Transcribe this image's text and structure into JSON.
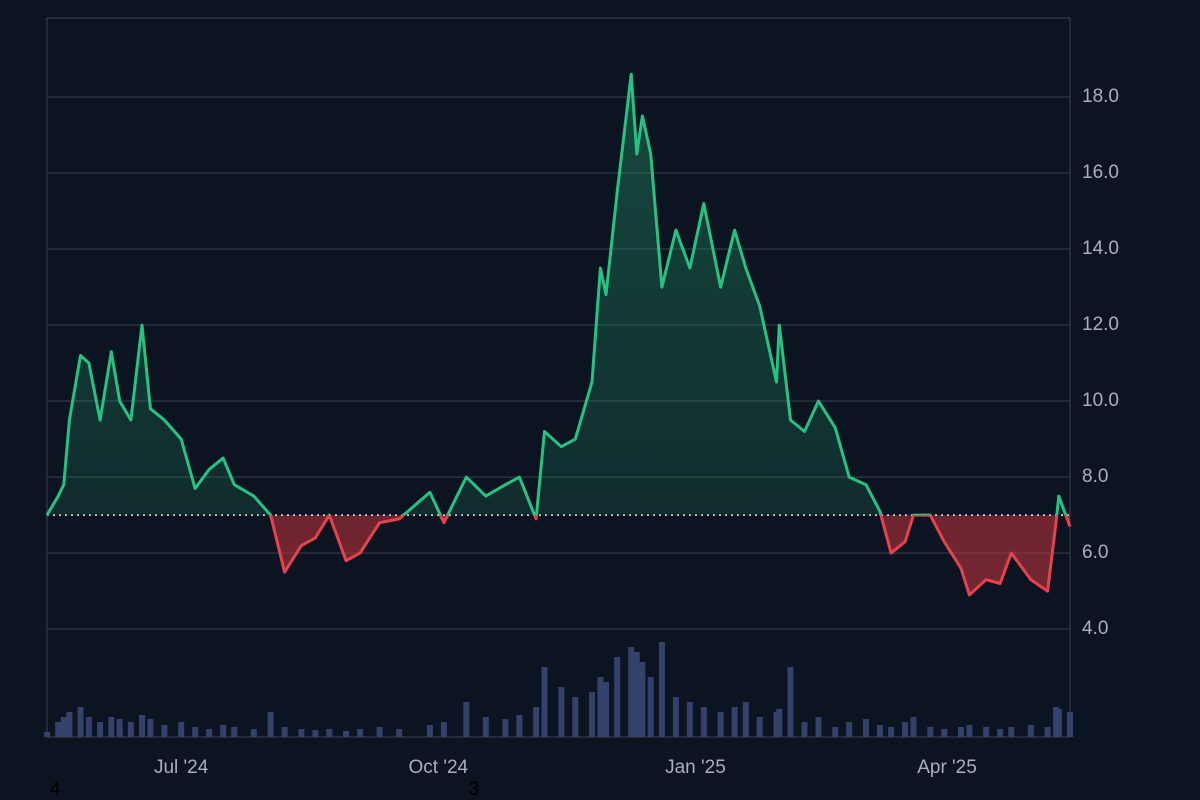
{
  "chart_data": {
    "type": "baseline",
    "x": [
      0,
      4,
      6,
      8,
      12,
      15,
      19,
      23,
      26,
      30,
      34,
      37,
      42,
      48,
      53,
      58,
      63,
      67,
      74,
      80,
      85,
      91,
      96,
      101,
      107,
      112,
      119,
      126,
      137,
      142,
      150,
      157,
      164,
      169,
      175,
      178,
      184,
      189,
      195,
      198,
      200,
      204,
      209,
      211,
      213,
      216,
      220,
      225,
      230,
      235,
      241,
      246,
      250,
      255,
      261,
      262,
      266,
      271,
      276,
      282,
      287,
      293,
      298,
      302,
      307,
      310,
      316,
      321,
      327,
      330,
      336,
      341,
      345,
      352,
      358,
      361,
      362,
      366
    ],
    "series": [
      {
        "values": [
          7.0,
          7.5,
          7.8,
          9.5,
          11.2,
          11.0,
          9.5,
          11.3,
          10.0,
          9.5,
          12.0,
          9.8,
          9.5,
          9.0,
          7.7,
          8.2,
          8.5,
          7.8,
          7.5,
          7.0,
          5.5,
          6.2,
          6.4,
          7.0,
          5.8,
          6.0,
          6.8,
          6.9,
          7.6,
          6.8,
          8.0,
          7.5,
          7.8,
          8.0,
          6.9,
          9.2,
          8.8,
          9.0,
          10.5,
          13.5,
          12.8,
          15.5,
          18.6,
          16.5,
          17.5,
          16.5,
          13.0,
          14.5,
          13.5,
          15.2,
          13.0,
          14.5,
          13.5,
          12.5,
          10.5,
          12.0,
          9.5,
          9.2,
          10.0,
          9.3,
          8.0,
          7.8,
          7.1,
          6.0,
          6.3,
          7.0,
          7.0,
          6.3,
          5.6,
          4.9,
          5.3,
          5.2,
          6.0,
          5.3,
          5.0,
          6.8,
          7.5,
          6.7
        ]
      },
      {
        "axis": "y2",
        "color": "#34416b",
        "values": [
          5,
          15,
          20,
          25,
          30,
          20,
          15,
          20,
          18,
          15,
          22,
          18,
          12,
          15,
          10,
          8,
          12,
          10,
          8,
          25,
          10,
          8,
          7,
          8,
          6,
          8,
          10,
          8,
          12,
          15,
          35,
          20,
          18,
          22,
          30,
          70,
          50,
          40,
          45,
          60,
          55,
          80,
          90,
          85,
          75,
          60,
          95,
          40,
          35,
          30,
          25,
          30,
          35,
          20,
          25,
          28,
          70,
          15,
          20,
          10,
          15,
          18,
          12,
          10,
          15,
          20,
          10,
          8,
          10,
          12,
          10,
          8,
          10,
          12,
          10,
          30,
          28,
          25
        ]
      }
    ],
    "baseline": 7.0,
    "up_color": "#26c281",
    "down_color": "#e5424d",
    "xlim": [
      0,
      366
    ],
    "xticks": [
      {
        "value": 48,
        "label": "Jul '24"
      },
      {
        "value": 140,
        "label": "Oct '24"
      },
      {
        "value": 232,
        "label": "Jan '25"
      },
      {
        "value": 322,
        "label": "Apr '25"
      }
    ],
    "ylim": [
      1.16,
      20.08
    ],
    "yticks": [
      {
        "value": 4,
        "label": "4.0"
      },
      {
        "value": 6,
        "label": "6.0"
      },
      {
        "value": 8,
        "label": "8.0"
      },
      {
        "value": 10,
        "label": "10.0"
      },
      {
        "value": 12,
        "label": "12.0"
      },
      {
        "value": 14,
        "label": "14.0"
      },
      {
        "value": 16,
        "label": "16.0"
      },
      {
        "value": 18,
        "label": "18.0"
      }
    ],
    "y2lim": [
      0,
      100
    ],
    "grid": true,
    "annotations": [
      {
        "text": "4"
      },
      {
        "text": "3"
      }
    ]
  }
}
